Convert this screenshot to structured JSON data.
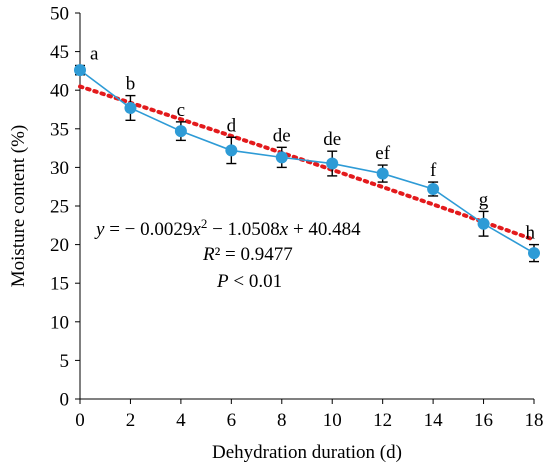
{
  "chart_data": {
    "type": "line",
    "title": "",
    "xlabel": "Dehydration duration (d)",
    "ylabel": "Moisture content (%)",
    "xlim": [
      0,
      18
    ],
    "ylim": [
      0,
      50
    ],
    "x_ticks": [
      0,
      2,
      4,
      6,
      8,
      10,
      12,
      14,
      16,
      18
    ],
    "y_ticks": [
      0,
      5,
      10,
      15,
      20,
      25,
      30,
      35,
      40,
      45,
      50
    ],
    "grid": false,
    "legend": "none",
    "series": [
      {
        "x": [
          0,
          2,
          4,
          6,
          8,
          10,
          12,
          14,
          16,
          18
        ],
        "values": [
          42.6,
          37.7,
          34.7,
          32.2,
          31.3,
          30.5,
          29.2,
          27.2,
          22.7,
          18.9
        ],
        "error": [
          0.6,
          1.6,
          1.2,
          1.7,
          1.3,
          1.6,
          1.1,
          0.9,
          1.6,
          1.1
        ],
        "significance": [
          "a",
          "b",
          "c",
          "d",
          "de",
          "de",
          "ef",
          "f",
          "g",
          "h"
        ],
        "color": "#2E9BD6"
      }
    ],
    "trendline": {
      "type": "polynomial",
      "coefficients": [
        -0.0029,
        -1.0508,
        40.484
      ],
      "color": "#E31A1C",
      "style": "dotted"
    },
    "annotations": {
      "equation": {
        "y": "y",
        "eq": " = − 0.0029",
        "x1": "x",
        "sup": "2",
        "minus": " − 1.0508",
        "x2": "x",
        "rest": " + 40.484"
      },
      "r2": {
        "r": "R",
        "rest": "² = 0.9477"
      },
      "p": {
        "p": "P",
        "rest": " < 0.01"
      }
    }
  }
}
